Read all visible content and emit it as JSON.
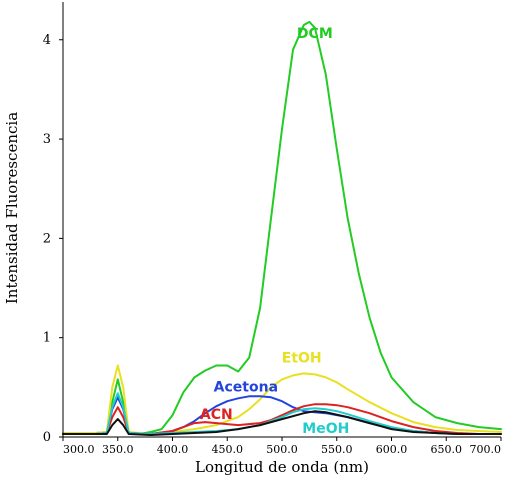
{
  "chart_data": {
    "type": "line",
    "xlabel": "Longitud de onda (nm)",
    "ylabel": "Intensidad Fluorescencia",
    "xlim": [
      300,
      700
    ],
    "ylim": [
      0,
      4.35
    ],
    "x_ticks": [
      300,
      350,
      400,
      450,
      500,
      550,
      600,
      650,
      700
    ],
    "x_tick_labels": [
      "300.0",
      "350.0",
      "400.0",
      "450.0",
      "500.0",
      "550.0",
      "600.0",
      "650.0",
      "700.0"
    ],
    "y_ticks": [
      0,
      1,
      2,
      3,
      4
    ],
    "y_tick_labels": [
      "0",
      "1",
      "2",
      "3",
      "4"
    ],
    "grid": false,
    "series": [
      {
        "name": "DCM",
        "color": "#22cc22",
        "x": [
          300,
          330,
          340,
          345,
          350,
          355,
          360,
          370,
          380,
          390,
          400,
          410,
          420,
          430,
          440,
          450,
          460,
          470,
          480,
          490,
          500,
          510,
          520,
          525,
          530,
          540,
          550,
          560,
          570,
          580,
          590,
          600,
          620,
          640,
          660,
          680,
          700
        ],
        "y": [
          0.04,
          0.04,
          0.05,
          0.35,
          0.58,
          0.35,
          0.05,
          0.03,
          0.05,
          0.08,
          0.22,
          0.45,
          0.6,
          0.67,
          0.72,
          0.72,
          0.66,
          0.8,
          1.3,
          2.2,
          3.1,
          3.9,
          4.15,
          4.18,
          4.12,
          3.65,
          2.9,
          2.2,
          1.65,
          1.2,
          0.85,
          0.6,
          0.35,
          0.2,
          0.14,
          0.1,
          0.08
        ]
      },
      {
        "name": "EtOH",
        "color": "#e8e020",
        "x": [
          300,
          330,
          340,
          345,
          350,
          355,
          360,
          380,
          400,
          420,
          440,
          460,
          470,
          480,
          490,
          500,
          510,
          520,
          530,
          540,
          550,
          560,
          580,
          600,
          620,
          640,
          660,
          680,
          700
        ],
        "y": [
          0.04,
          0.04,
          0.05,
          0.5,
          0.72,
          0.5,
          0.05,
          0.03,
          0.05,
          0.08,
          0.12,
          0.2,
          0.28,
          0.38,
          0.5,
          0.58,
          0.62,
          0.64,
          0.63,
          0.6,
          0.55,
          0.48,
          0.35,
          0.24,
          0.15,
          0.1,
          0.07,
          0.06,
          0.05
        ]
      },
      {
        "name": "Acetona",
        "color": "#2244dd",
        "x": [
          300,
          330,
          340,
          345,
          350,
          355,
          360,
          380,
          400,
          410,
          420,
          430,
          440,
          450,
          460,
          470,
          480,
          490,
          500,
          510,
          520,
          530,
          540,
          550,
          560,
          580,
          600,
          620,
          640,
          660,
          680,
          700
        ],
        "y": [
          0.03,
          0.03,
          0.04,
          0.28,
          0.4,
          0.28,
          0.04,
          0.03,
          0.06,
          0.1,
          0.16,
          0.24,
          0.31,
          0.36,
          0.39,
          0.41,
          0.41,
          0.4,
          0.36,
          0.3,
          0.26,
          0.25,
          0.24,
          0.22,
          0.2,
          0.14,
          0.09,
          0.06,
          0.04,
          0.03,
          0.03,
          0.03
        ]
      },
      {
        "name": "ACN",
        "color": "#dd2222",
        "x": [
          300,
          330,
          340,
          345,
          350,
          355,
          360,
          380,
          400,
          410,
          420,
          430,
          440,
          460,
          480,
          490,
          500,
          510,
          520,
          530,
          540,
          550,
          560,
          580,
          600,
          620,
          640,
          660,
          680,
          700
        ],
        "y": [
          0.03,
          0.03,
          0.04,
          0.2,
          0.3,
          0.2,
          0.04,
          0.03,
          0.06,
          0.1,
          0.14,
          0.15,
          0.14,
          0.12,
          0.14,
          0.17,
          0.22,
          0.27,
          0.31,
          0.33,
          0.33,
          0.32,
          0.3,
          0.24,
          0.16,
          0.1,
          0.06,
          0.04,
          0.03,
          0.03
        ]
      },
      {
        "name": "MeOH",
        "color": "#22cccc",
        "x": [
          300,
          330,
          340,
          345,
          350,
          355,
          360,
          380,
          400,
          420,
          440,
          460,
          480,
          490,
          500,
          510,
          520,
          530,
          540,
          550,
          560,
          580,
          600,
          620,
          640,
          660,
          680,
          700
        ],
        "y": [
          0.03,
          0.03,
          0.04,
          0.3,
          0.44,
          0.3,
          0.04,
          0.03,
          0.04,
          0.05,
          0.06,
          0.08,
          0.12,
          0.16,
          0.2,
          0.25,
          0.28,
          0.29,
          0.28,
          0.26,
          0.23,
          0.16,
          0.1,
          0.06,
          0.04,
          0.03,
          0.03,
          0.03
        ]
      },
      {
        "name": "",
        "color": "#111111",
        "x": [
          300,
          330,
          340,
          345,
          350,
          355,
          360,
          380,
          400,
          420,
          440,
          460,
          480,
          500,
          520,
          530,
          540,
          560,
          580,
          600,
          620,
          640,
          660,
          680,
          700
        ],
        "y": [
          0.03,
          0.03,
          0.03,
          0.12,
          0.18,
          0.12,
          0.03,
          0.02,
          0.03,
          0.04,
          0.05,
          0.08,
          0.12,
          0.18,
          0.24,
          0.26,
          0.25,
          0.2,
          0.14,
          0.08,
          0.05,
          0.04,
          0.03,
          0.03,
          0.03
        ]
      }
    ],
    "annotations": [
      {
        "text": "DCM",
        "series": "DCM",
        "x": 530,
        "y": 4.02
      },
      {
        "text": "EtOH",
        "series": "EtOH",
        "x": 518,
        "y": 0.75
      },
      {
        "text": "Acetona",
        "series": "Acetona",
        "x": 467,
        "y": 0.46
      },
      {
        "text": "ACN",
        "series": "ACN",
        "x": 440,
        "y": 0.18
      },
      {
        "text": "MeOH",
        "series": "MeOH",
        "x": 540,
        "y": 0.04
      }
    ]
  }
}
